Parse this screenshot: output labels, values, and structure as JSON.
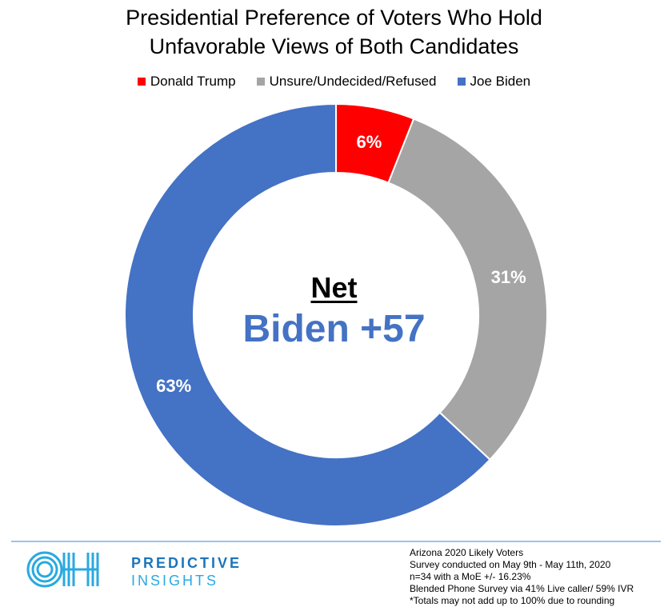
{
  "chart_data": {
    "type": "pie",
    "style": "donut",
    "title": "Presidential Preference of Voters Who Hold Unfavorable Views of Both Candidates",
    "title_lines": [
      "Presidential Preference of Voters Who Hold",
      "Unfavorable Views of Both Candidates"
    ],
    "legend_position": "top",
    "series": [
      {
        "name": "Donald Trump",
        "value": 6,
        "label": "6%",
        "color": "#ff0000"
      },
      {
        "name": "Unsure/Undecided/Refused",
        "value": 31,
        "label": "31%",
        "color": "#a5a5a5"
      },
      {
        "name": "Joe Biden",
        "value": 63,
        "label": "63%",
        "color": "#4472c4"
      }
    ],
    "center_annotation": {
      "heading": "Net",
      "value": "Biden +57",
      "value_color": "#4472c4"
    }
  },
  "footer": {
    "divider_color": "#9dc3e6",
    "logo": {
      "line1": "PREDICTIVE",
      "line2": "INSIGHTS",
      "monogram": "OH",
      "color1": "#1b75bc",
      "color2": "#29a9e0"
    },
    "notes": [
      "Arizona 2020 Likely Voters",
      "Survey conducted on May 9th - May 11th, 2020",
      "n=34 with a MoE +/- 16.23%",
      "Blended Phone Survey via 41% Live caller/ 59% IVR",
      "*Totals may not add up to 100% due to rounding"
    ]
  }
}
